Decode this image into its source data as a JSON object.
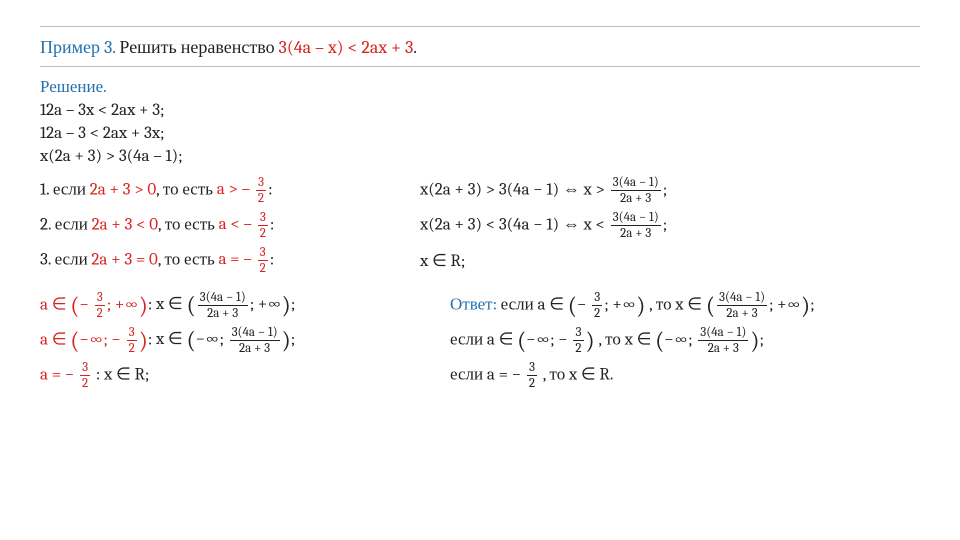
{
  "colors": {
    "accent_blue": "#2170b0",
    "accent_red": "#d8221f",
    "text": "#222222",
    "rule": "#bfbfbf",
    "background": "#ffffff"
  },
  "typography": {
    "family": "Cambria / Georgia serif",
    "base_size_pt": 17,
    "title_size_pt": 18
  },
  "example": {
    "label": "Пример 3.",
    "prompt_prefix": "Решить неравенство ",
    "inequality": "3(4a – x) < 2ax + 3",
    "dot": "."
  },
  "solution_label": "Решение.",
  "steps": [
    "12a – 3x < 2ax + 3;",
    "12a – 3 < 2ax + 3x;",
    "x(2a + 3) > 3(4a – 1);"
  ],
  "cases": [
    {
      "idx": "1. если ",
      "cond": "2a + 3 > 0",
      "mid": ", то есть ",
      "res_prefix": "a > – ",
      "frac_num": "3",
      "frac_den": "2",
      "colon": ":",
      "right_pre": "x(2a + 3) > 3(4a − 1) ⇔ x > ",
      "right_frac_num": "3(4a − 1)",
      "right_frac_den": "2a + 3",
      "right_post": ";"
    },
    {
      "idx": "2. если ",
      "cond": "2a + 3 < 0",
      "mid": ", то есть ",
      "res_prefix": "a < – ",
      "frac_num": "3",
      "frac_den": "2",
      "colon": ":",
      "right_pre": "x(2a + 3) < 3(4a − 1) ⇔ x < ",
      "right_frac_num": "3(4a − 1)",
      "right_frac_den": "2a + 3",
      "right_post": ";"
    },
    {
      "idx": "3. если ",
      "cond": "2a + 3 = 0",
      "mid": ", то есть ",
      "res_prefix": "a = – ",
      "frac_num": "3",
      "frac_den": "2",
      "colon": ":",
      "right_simple": "x ∈ R;"
    }
  ],
  "summary_left": [
    {
      "a_prefix": "a ∈ ",
      "lp": "(",
      "neg": "− ",
      "fn": "3",
      "fd": "2",
      "mid": ";  +∞",
      "rp": ")",
      "colon": ": ",
      "x_prefix": "x ∈ ",
      "x_lp": "(",
      "xfn": "3(4a − 1)",
      "xfd": "2a + 3",
      "x_mid": "; +∞",
      "x_rp": ")",
      "tail": ";"
    },
    {
      "a_prefix": "a ∈ ",
      "lp": "(",
      "a_l": "−∞; − ",
      "fn": "3",
      "fd": "2",
      "rp": ")",
      "colon": ": ",
      "x_prefix": "x ∈ ",
      "x_lp": "(",
      "x_l": "−∞;  ",
      "xfn": "3(4a − 1)",
      "xfd": "2a + 3",
      "x_rp": ")",
      "tail": ";"
    },
    {
      "a_prefix": "a = − ",
      "fn": "3",
      "fd": "2",
      "colon": " : ",
      "x_text": "x ∈ R;"
    }
  ],
  "answer": {
    "label": "Ответ: ",
    "lines": [
      {
        "pre": "если a ∈ ",
        "lp": "(",
        "neg": "− ",
        "fn": "3",
        "fd": "2",
        "mid": ";  +∞",
        "rp": ")",
        "mid2": " , то x ∈ ",
        "xlp": "(",
        "xfn": "3(4a − 1)",
        "xfd": "2a + 3",
        "xmid": "; +∞",
        "xrp": ")",
        "tail": ";"
      },
      {
        "pre": "если a ∈ ",
        "lp": "(",
        "lcontent": "−∞; − ",
        "fn": "3",
        "fd": "2",
        "rp": ")",
        "mid2": " , то x ∈ ",
        "xlp": "(",
        "xlcontent": "−∞;  ",
        "xfn": "3(4a − 1)",
        "xfd": "2a + 3",
        "xrp": ")",
        "tail": ";"
      },
      {
        "pre": "если a = − ",
        "fn": "3",
        "fd": "2",
        "mid2": " , то x ∈ R.",
        "tail": ""
      }
    ]
  }
}
